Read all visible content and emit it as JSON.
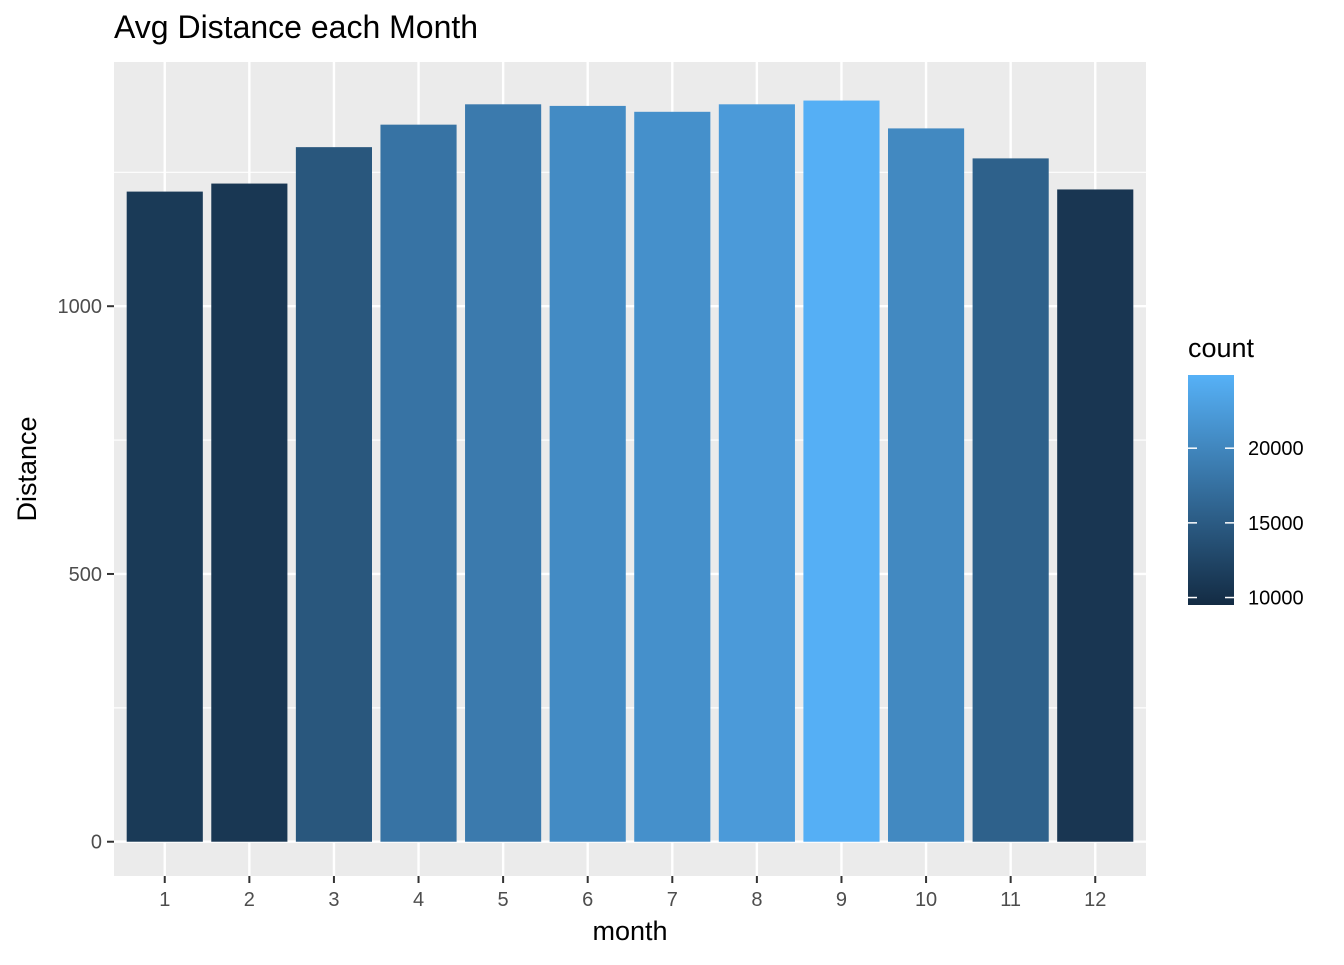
{
  "chart_data": {
    "type": "bar",
    "title": "Avg Distance each Month",
    "xlabel": "month",
    "ylabel": "Distance",
    "categories": [
      "1",
      "2",
      "3",
      "4",
      "5",
      "6",
      "7",
      "8",
      "9",
      "10",
      "11",
      "12"
    ],
    "values": [
      1214,
      1229,
      1297,
      1339,
      1377,
      1374,
      1363,
      1377,
      1384,
      1332,
      1276,
      1218
    ],
    "counts": [
      11200,
      10900,
      14500,
      17800,
      18600,
      20500,
      21100,
      22300,
      24700,
      20300,
      15700,
      10800
    ],
    "y_ticks": [
      0,
      500,
      1000
    ],
    "ylim": [
      -64,
      1456
    ],
    "grid": true,
    "legend": {
      "title": "count",
      "position": "right",
      "ticks": [
        10000,
        15000,
        20000
      ],
      "tick_labels": [
        "10000",
        "15000",
        "20000"
      ],
      "range": [
        9500,
        24900
      ],
      "low_color": "#132B43",
      "high_color": "#56B1F7"
    },
    "colors": {
      "panel_background": "#EBEBEB",
      "grid_line": "#FFFFFF",
      "tick_label": "#4D4D4D",
      "text": "#000000"
    }
  }
}
